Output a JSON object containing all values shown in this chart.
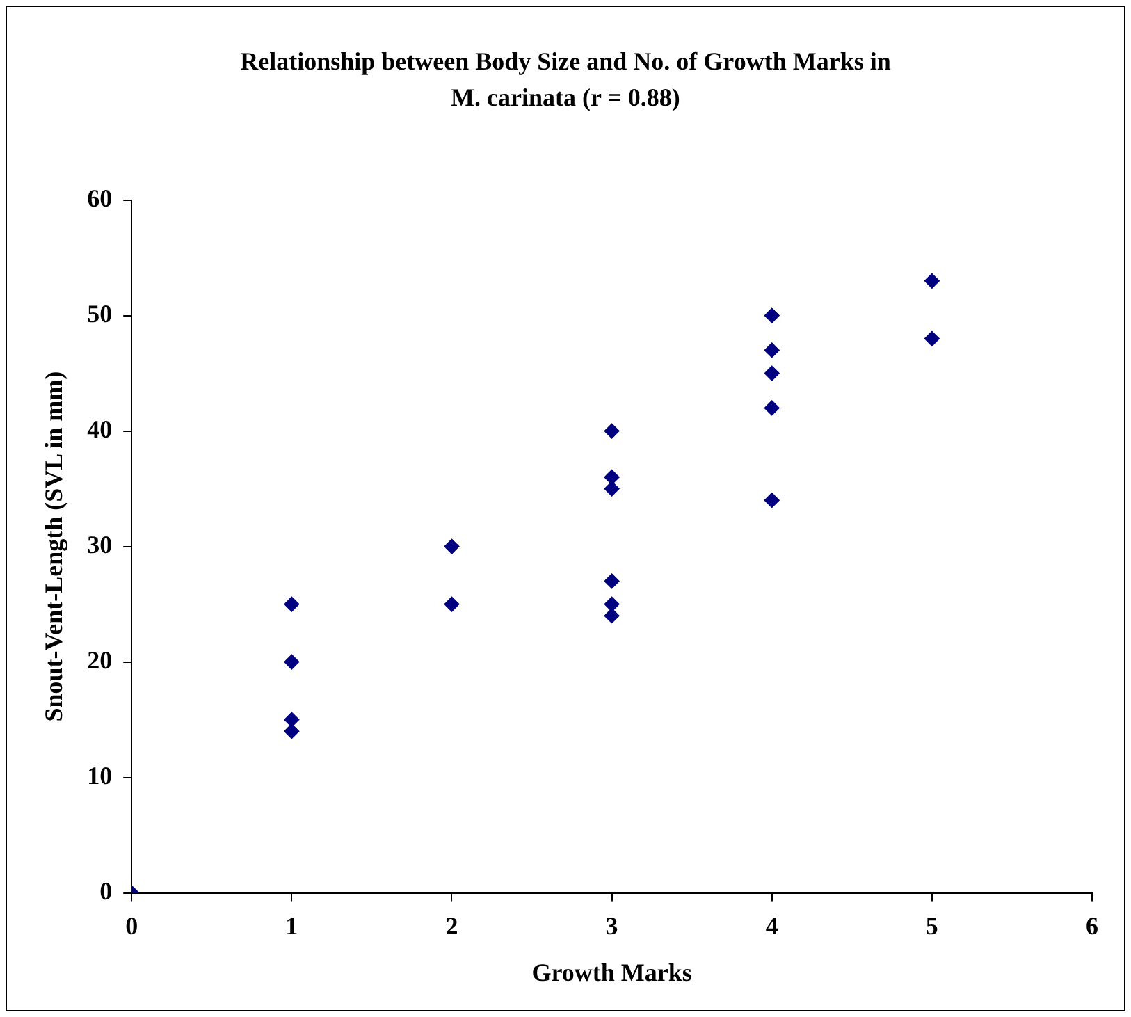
{
  "chart_data": {
    "type": "scatter",
    "title": "Relationship between Body Size and No. of Growth Marks in\nM. carinata  (r = 0.88)",
    "xlabel": "Growth Marks",
    "ylabel": "Snout-Vent-Length (SVL in mm)",
    "x": [
      0,
      1,
      1,
      1,
      1,
      2,
      2,
      3,
      3,
      3,
      3,
      3,
      3,
      4,
      4,
      4,
      4,
      4,
      5,
      5
    ],
    "values": [
      0,
      25,
      20,
      15,
      14,
      30,
      25,
      40,
      36,
      35,
      27,
      25,
      24,
      50,
      47,
      45,
      42,
      34,
      53,
      48
    ],
    "color": "#000080",
    "marker": "diamond",
    "xlim": [
      0,
      6
    ],
    "xticks": [
      0,
      1,
      2,
      3,
      4,
      5,
      6
    ],
    "ylim": [
      0,
      60
    ],
    "yticks": [
      0,
      10,
      20,
      30,
      40,
      50,
      60
    ],
    "grid": false,
    "legend": false
  }
}
